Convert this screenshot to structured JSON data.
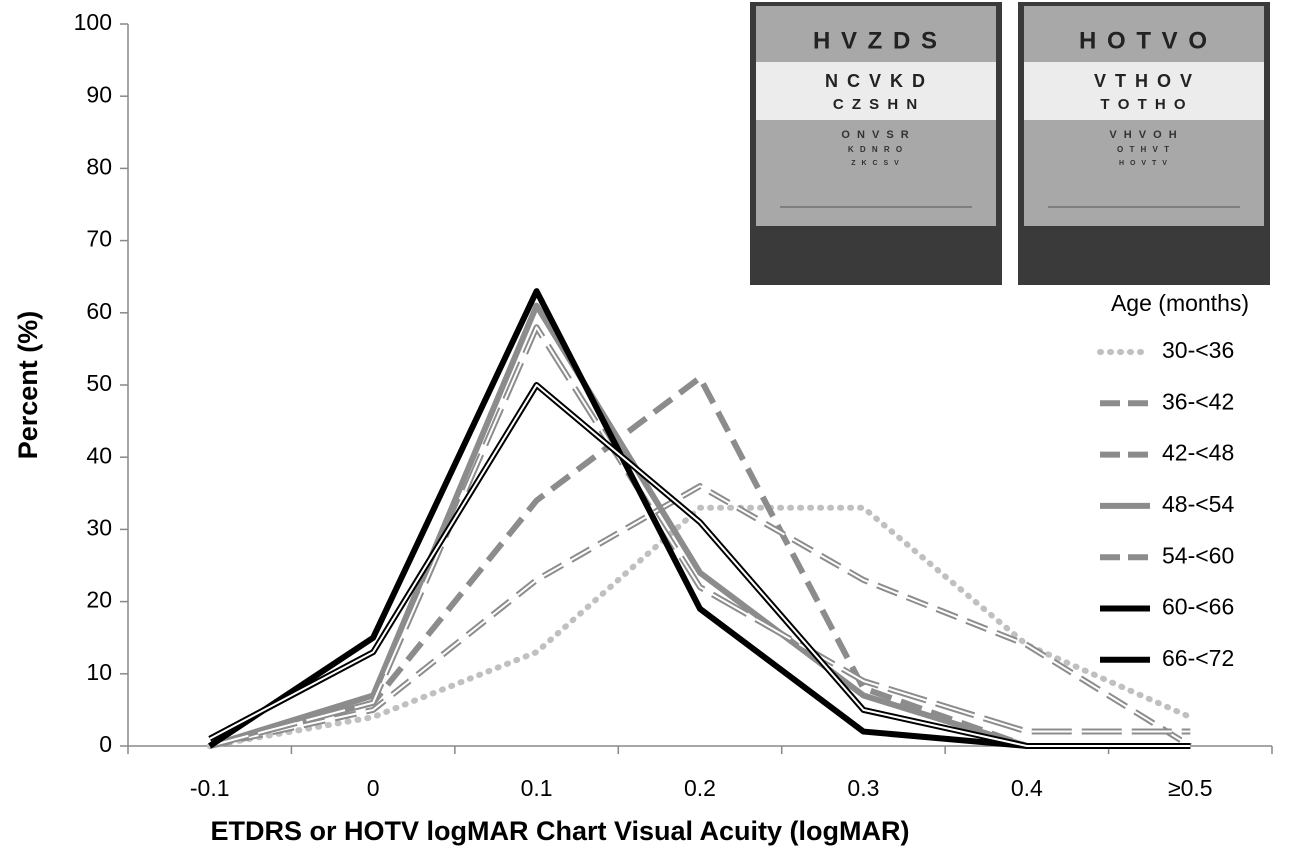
{
  "chart_data": {
    "type": "line",
    "x_label": "ETDRS  or HOTV logMAR Chart Visual Acuity (logMAR)",
    "y_label": "Percent (%)",
    "legend_title": "Age (months)",
    "legend": "right",
    "categories": [
      "-0.1",
      "0",
      "0.1",
      "0.2",
      "0.3",
      "0.4",
      "≥0.5"
    ],
    "ylim": [
      0,
      100
    ],
    "yticks": [
      0,
      10,
      20,
      30,
      40,
      50,
      60,
      70,
      80,
      90,
      100
    ],
    "series": [
      {
        "name": "30-<36",
        "color": "#c0c0c0",
        "style": "dotted",
        "double": false,
        "values": [
          0,
          4,
          13,
          33,
          33,
          14,
          4
        ]
      },
      {
        "name": "36-<42",
        "color": "#8c8c8c",
        "style": "dashed",
        "double": false,
        "values": [
          0,
          6,
          34,
          51,
          8,
          0,
          0
        ]
      },
      {
        "name": "42-<48",
        "color": "#8c8c8c",
        "style": "dashed",
        "double": true,
        "values": [
          0,
          5,
          23,
          36,
          23,
          14,
          0
        ]
      },
      {
        "name": "48-<54",
        "color": "#8c8c8c",
        "style": "solid",
        "double": false,
        "values": [
          0,
          7,
          61,
          24,
          7,
          0,
          0
        ]
      },
      {
        "name": "54-<60",
        "color": "#8c8c8c",
        "style": "longdash",
        "double": true,
        "values": [
          0,
          6,
          58,
          22,
          9,
          2,
          2
        ]
      },
      {
        "name": "60-<66",
        "color": "#000000",
        "style": "solid",
        "double": false,
        "values": [
          0,
          15,
          63,
          19,
          2,
          0,
          0
        ]
      },
      {
        "name": "66-<72",
        "color": "#000000",
        "style": "solid",
        "double": true,
        "values": [
          1,
          13,
          50,
          31,
          5,
          0,
          0
        ]
      }
    ],
    "insets": [
      {
        "rows": [
          "H V Z D S",
          "N C V K D",
          "C Z S H N",
          "O N V S R",
          "K D N R O",
          "Z K C S V"
        ]
      },
      {
        "rows": [
          "H O T V O",
          "V T H O V",
          "T O T H O",
          "V H V O H",
          "O T H V T",
          "H O V T V"
        ]
      }
    ]
  }
}
